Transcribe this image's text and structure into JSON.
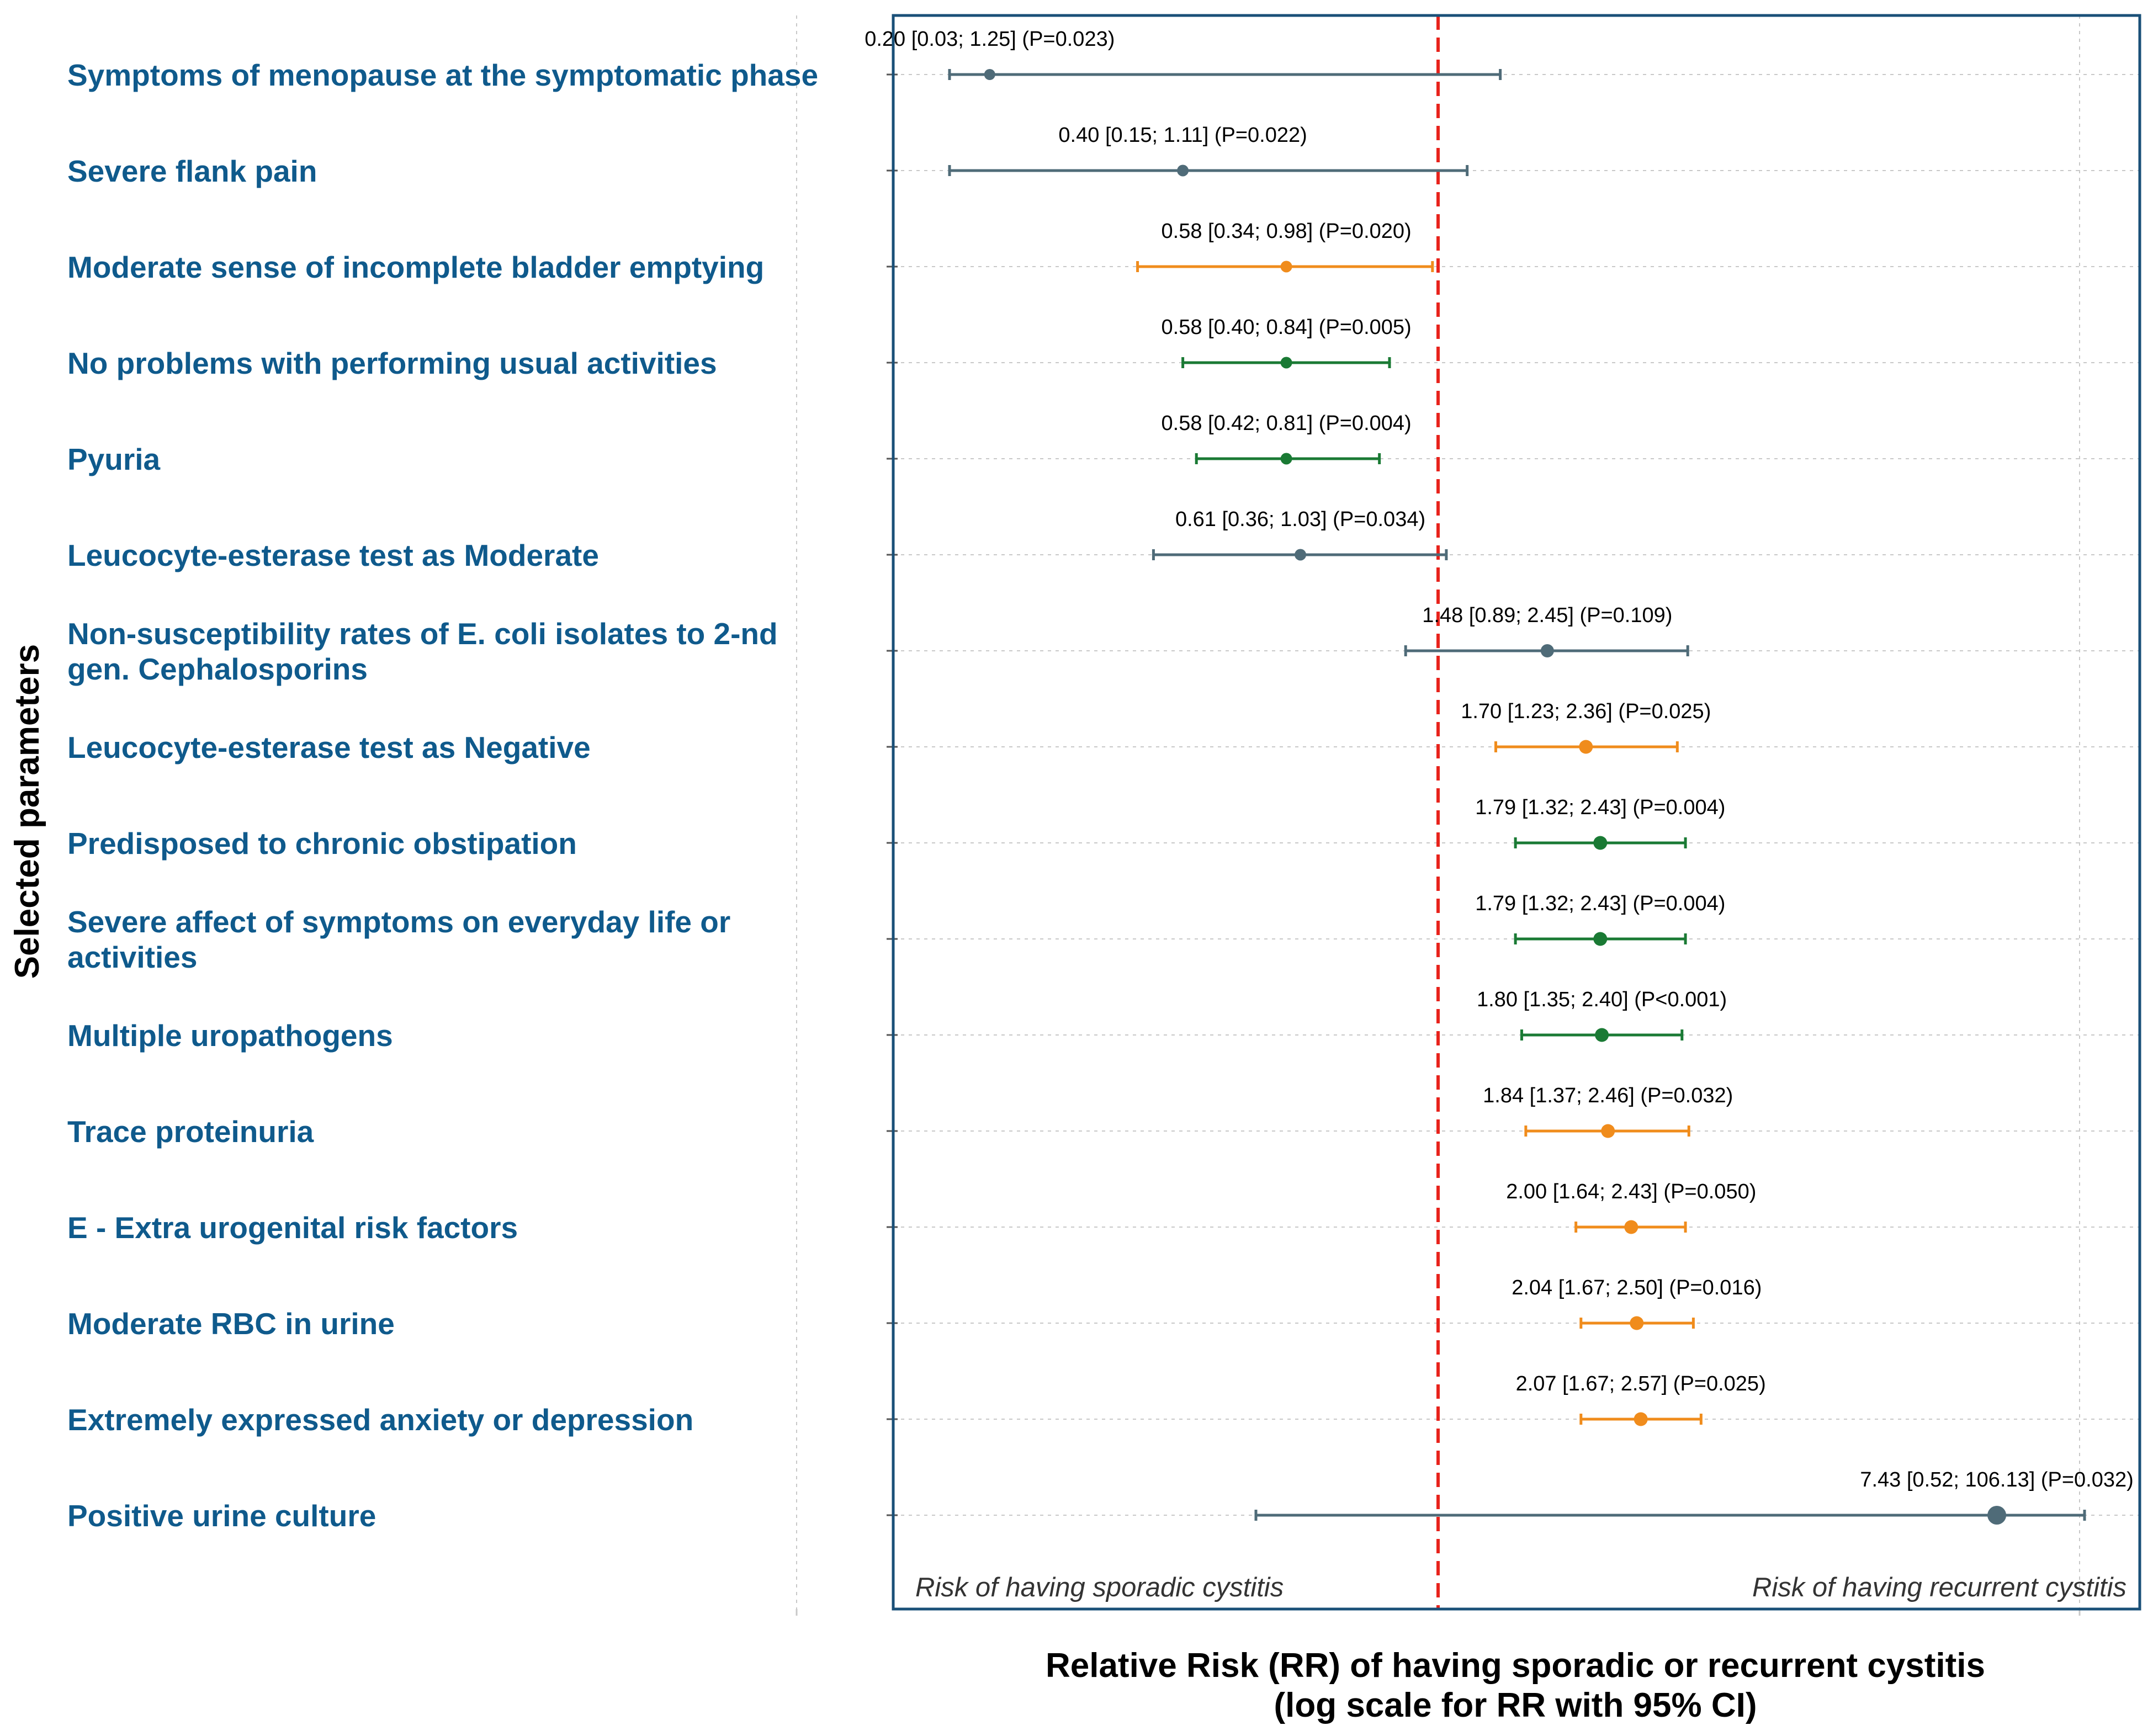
{
  "chart_data": {
    "type": "forest",
    "xscale": "log",
    "reference_line": 1.0,
    "xlim": [
      0.1,
      11
    ],
    "ylabel": "Selected parameters",
    "xlabel": "Relative Risk (RR) of having sporadic or recurrent cystitis",
    "xlabel_line2": "(log scale for RR with 95% CI)",
    "region_left_label": "Risk of having sporadic cystitis",
    "region_right_label": "Risk of having recurrent cystitis",
    "grid": true,
    "rows": [
      {
        "label": "Symptoms of menopause at the symptomatic phase",
        "label_lines": [
          "Symptoms of menopause at the symptomatic phase"
        ],
        "rr": 0.2,
        "lower": 0.03,
        "upper": 1.25,
        "ci_text": "0.20 [0.03; 1.25] (P=0.023)",
        "color": "#4f6b78",
        "point_size": 0.3
      },
      {
        "label": "Severe flank pain",
        "label_lines": [
          "Severe flank pain"
        ],
        "rr": 0.4,
        "lower": 0.15,
        "upper": 1.11,
        "ci_text": "0.40 [0.15; 1.11] (P=0.022)",
        "color": "#4f6b78",
        "point_size": 0.35
      },
      {
        "label": "Moderate sense of incomplete bladder emptying",
        "label_lines": [
          "Moderate sense of incomplete bladder emptying"
        ],
        "rr": 0.58,
        "lower": 0.34,
        "upper": 0.98,
        "ci_text": "0.58 [0.34; 0.98] (P=0.020)",
        "color": "#f08c1c",
        "point_size": 0.35
      },
      {
        "label": "No problems with performing usual activities",
        "label_lines": [
          "No problems with performing usual activities"
        ],
        "rr": 0.58,
        "lower": 0.4,
        "upper": 0.84,
        "ci_text": "0.58 [0.40; 0.84] (P=0.005)",
        "color": "#1a7a34",
        "point_size": 0.35
      },
      {
        "label": "Pyuria",
        "label_lines": [
          "Pyuria"
        ],
        "rr": 0.58,
        "lower": 0.42,
        "upper": 0.81,
        "ci_text": "0.58 [0.42; 0.81] (P=0.004)",
        "color": "#1a7a34",
        "point_size": 0.35
      },
      {
        "label": "Leucocyte-esterase test as Moderate",
        "label_lines": [
          "Leucocyte-esterase test as Moderate"
        ],
        "rr": 0.61,
        "lower": 0.36,
        "upper": 1.03,
        "ci_text": "0.61 [0.36; 1.03] (P=0.034)",
        "color": "#4f6b78",
        "point_size": 0.35
      },
      {
        "label": "Non-susceptibility rates of E. coli isolates to 2-nd gen. Cephalosporins",
        "label_lines": [
          "Non-susceptibility rates of E. coli isolates to 2-nd",
          "gen. Cephalosporins"
        ],
        "rr": 1.48,
        "lower": 0.89,
        "upper": 2.45,
        "ci_text": "1.48 [0.89; 2.45] (P=0.109)",
        "color": "#4f6b78",
        "point_size": 0.5
      },
      {
        "label": "Leucocyte-esterase test as Negative",
        "label_lines": [
          "Leucocyte-esterase test as Negative"
        ],
        "rr": 1.7,
        "lower": 1.23,
        "upper": 2.36,
        "ci_text": "1.70 [1.23; 2.36] (P=0.025)",
        "color": "#f08c1c",
        "point_size": 0.55
      },
      {
        "label": "Predisposed to chronic obstipation",
        "label_lines": [
          "Predisposed to chronic obstipation"
        ],
        "rr": 1.79,
        "lower": 1.32,
        "upper": 2.43,
        "ci_text": "1.79 [1.32; 2.43] (P=0.004)",
        "color": "#1a7a34",
        "point_size": 0.55
      },
      {
        "label": "Severe affect of symptoms on everyday life or activities",
        "label_lines": [
          "Severe affect of symptoms on everyday life or",
          "activities"
        ],
        "rr": 1.79,
        "lower": 1.32,
        "upper": 2.43,
        "ci_text": "1.79 [1.32; 2.43] (P=0.004)",
        "color": "#1a7a34",
        "point_size": 0.55
      },
      {
        "label": "Multiple uropathogens",
        "label_lines": [
          "Multiple uropathogens"
        ],
        "rr": 1.8,
        "lower": 1.35,
        "upper": 2.4,
        "ci_text": "1.80 [1.35; 2.40] (P<0.001)",
        "color": "#1a7a34",
        "point_size": 0.55
      },
      {
        "label": "Trace proteinuria",
        "label_lines": [
          "Trace proteinuria"
        ],
        "rr": 1.84,
        "lower": 1.37,
        "upper": 2.46,
        "ci_text": "1.84 [1.37; 2.46] (P=0.032)",
        "color": "#f08c1c",
        "point_size": 0.55
      },
      {
        "label": "E - Extra urogenital risk factors",
        "label_lines": [
          "E - Extra urogenital risk factors"
        ],
        "rr": 2.0,
        "lower": 1.64,
        "upper": 2.43,
        "ci_text": "2.00 [1.64; 2.43] (P=0.050)",
        "color": "#f08c1c",
        "point_size": 0.55
      },
      {
        "label": "Moderate RBC in urine",
        "label_lines": [
          "Moderate RBC in urine"
        ],
        "rr": 2.04,
        "lower": 1.67,
        "upper": 2.5,
        "ci_text": "2.04 [1.67; 2.50] (P=0.016)",
        "color": "#f08c1c",
        "point_size": 0.55
      },
      {
        "label": "Extremely expressed anxiety or depression",
        "label_lines": [
          "Extremely expressed anxiety or depression"
        ],
        "rr": 2.07,
        "lower": 1.67,
        "upper": 2.57,
        "ci_text": "2.07 [1.67; 2.57] (P=0.025)",
        "color": "#f08c1c",
        "point_size": 0.55
      },
      {
        "label": "Positive urine culture",
        "label_lines": [
          "Positive urine culture"
        ],
        "rr": 7.43,
        "lower": 0.52,
        "upper": 106.13,
        "ci_text": "7.43 [0.52; 106.13] (P=0.032)",
        "color": "#4f6b78",
        "point_size": 1.0
      }
    ],
    "colors": {
      "label_text": "#0f5a8c",
      "panel_border": "#1a5078",
      "reference_line": "#e8231c",
      "grid": "#c8c8c8"
    }
  }
}
